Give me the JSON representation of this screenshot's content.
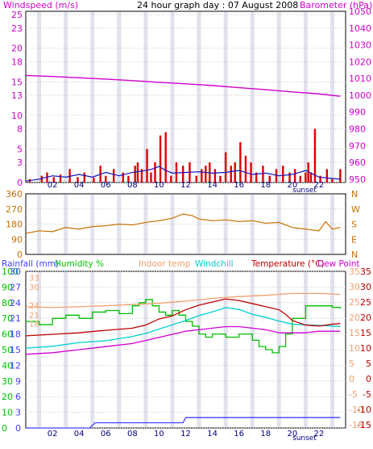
{
  "chart_data": [
    {
      "type": "bar+line",
      "title": "24 hour graph day : 07 August 2008",
      "left_axis_label": "Windspeed (m/s)",
      "right_axis_label": "Barometer (hPa)",
      "left_ticks": [
        "25",
        "23",
        "20",
        "18",
        "15",
        "13",
        "10",
        "8",
        "5",
        "3",
        "0"
      ],
      "left_range": [
        0,
        25.5
      ],
      "right_ticks": [
        "1050",
        "1040",
        "1030",
        "1020",
        "1010",
        "1000",
        "990",
        "980",
        "970",
        "960",
        "950"
      ],
      "right_range": [
        948,
        1050
      ],
      "x_ticks": [
        "02",
        "04",
        "06",
        "08",
        "10",
        "12",
        "14",
        "16",
        "18",
        "20",
        "22"
      ],
      "x_range_hours": [
        0,
        24
      ],
      "sunset_label": "sunset",
      "gridlines": true,
      "series": [
        {
          "kind": "bars",
          "color": "#e00000",
          "x": [
            0.3,
            1.2,
            1.6,
            2.1,
            2.6,
            3.3,
            3.9,
            4.4,
            5.1,
            5.6,
            6.0,
            6.6,
            7.3,
            7.7,
            8.2,
            8.4,
            8.7,
            9.1,
            9.4,
            9.7,
            10.1,
            10.5,
            10.9,
            11.3,
            11.8,
            12.3,
            12.8,
            13.2,
            13.5,
            13.8,
            14.2,
            14.6,
            15.0,
            15.4,
            15.7,
            16.1,
            16.5,
            16.9,
            17.3,
            17.8,
            18.3,
            18.8,
            19.3,
            19.8,
            20.2,
            20.6,
            21.0,
            21.2,
            21.4,
            21.7,
            22.1,
            22.6,
            23.0,
            23.6
          ],
          "values": [
            0.5,
            1.0,
            1.5,
            0.8,
            1.2,
            2.0,
            0.8,
            1.5,
            0.7,
            2.5,
            1.0,
            2.0,
            1.5,
            1.0,
            2.5,
            3.0,
            2.0,
            5.0,
            1.5,
            3.0,
            7.0,
            7.5,
            1.0,
            3.0,
            2.5,
            3.0,
            1.0,
            2.0,
            2.5,
            3.0,
            2.0,
            1.0,
            4.5,
            2.5,
            3.0,
            6.0,
            4.0,
            3.0,
            1.5,
            2.5,
            1.0,
            2.0,
            2.5,
            1.5,
            2.0,
            1.0,
            1.5,
            3.0,
            1.5,
            8.0,
            1.0,
            2.0,
            0.5,
            2.0
          ]
        },
        {
          "kind": "line",
          "name": "Average windspeed",
          "color": "#1010c0",
          "x": [
            0,
            1,
            2,
            3,
            4,
            5,
            6,
            7,
            8,
            9,
            9.5,
            10,
            10.5,
            11,
            12,
            13,
            14,
            15,
            16,
            17,
            18,
            19,
            20,
            20.7,
            21,
            22,
            23,
            23.6
          ],
          "values": [
            0.2,
            0.5,
            1.0,
            0.8,
            1.2,
            0.8,
            1.5,
            1.0,
            1.5,
            1.8,
            2.0,
            2.4,
            1.8,
            1.4,
            1.5,
            1.6,
            1.4,
            1.5,
            1.8,
            1.2,
            1.4,
            1.0,
            1.2,
            1.6,
            1.8,
            0.8,
            0.6,
            0.5
          ]
        },
        {
          "kind": "line",
          "name": "Barometer",
          "color": "#d000d0",
          "axis": "right",
          "x": [
            0,
            2,
            4,
            6,
            8,
            10,
            12,
            14,
            16,
            18,
            20,
            22,
            23.6
          ],
          "values": [
            1011.8,
            1011.2,
            1010.4,
            1009.6,
            1008.7,
            1007.7,
            1006.8,
            1005.8,
            1004.5,
            1003.3,
            1002.0,
            1000.8,
            999.4
          ]
        }
      ]
    },
    {
      "type": "line",
      "right_letters": [
        "N",
        "W",
        "S",
        "E",
        "N"
      ],
      "left_ticks": [
        "360",
        "270",
        "180",
        "90",
        "0"
      ],
      "left_range": [
        0,
        360
      ],
      "gridlines": true,
      "series": [
        {
          "name": "Wind direction",
          "color": "#c87000",
          "x": [
            0,
            1,
            2,
            3,
            4,
            5,
            6,
            7,
            8,
            9,
            10,
            11,
            11.8,
            12.5,
            13,
            14,
            15,
            16,
            17,
            18,
            19,
            20,
            21,
            22,
            22.5,
            23,
            23.6
          ],
          "values": [
            125,
            140,
            135,
            160,
            150,
            165,
            170,
            180,
            175,
            190,
            200,
            215,
            240,
            230,
            210,
            200,
            205,
            195,
            200,
            185,
            190,
            160,
            150,
            140,
            195,
            150,
            160
          ]
        }
      ]
    },
    {
      "type": "line",
      "legend": [
        {
          "label": "Rainfall (mm)",
          "color": "#4040ff"
        },
        {
          "label": "Humidity %",
          "color": "#00c000"
        },
        {
          "label": "Indoor temp",
          "color": "#f0a070"
        },
        {
          "label": "Windchill",
          "color": "#00d0d0"
        },
        {
          "label": "Temperature (°C)",
          "color": "#c00000"
        },
        {
          "label": "Dew Point",
          "color": "#d000d0"
        }
      ],
      "rain_ticks": [
        "30",
        "27",
        "24",
        "21",
        "18",
        "15",
        "12",
        "9",
        "6",
        "3",
        "0"
      ],
      "humidity_ticks": [
        "100",
        "90",
        "80",
        "70",
        "60",
        "50",
        "40",
        "30",
        "20",
        "10",
        "0"
      ],
      "temp_ticks_right": [
        "35",
        "30",
        "25",
        "20",
        "15",
        "10",
        "5",
        "0",
        "-5",
        "-10",
        "-15"
      ],
      "temp_ticks_left_inner": [
        "33",
        "30",
        "24",
        "21",
        "18"
      ],
      "x_ticks": [
        "02",
        "04",
        "06",
        "08",
        "10",
        "12",
        "14",
        "16",
        "18",
        "20",
        "22"
      ],
      "sunset_label": "sunset",
      "temp_range": [
        -16,
        35
      ],
      "gridlines": true,
      "series": [
        {
          "name": "Humidity",
          "color": "#00c000",
          "axis": "humidity",
          "x": [
            0,
            1,
            2,
            3,
            4,
            5,
            6,
            7,
            8,
            8.5,
            9,
            9.5,
            10,
            10.5,
            11,
            11.5,
            12,
            12.5,
            13,
            13.5,
            14,
            15,
            16,
            17,
            17.5,
            18,
            18.5,
            19,
            19.5,
            20,
            21,
            22,
            23,
            23.6
          ],
          "values": [
            68,
            66,
            70,
            72,
            70,
            74,
            75,
            73,
            78,
            80,
            82,
            78,
            74,
            72,
            75,
            72,
            68,
            65,
            60,
            58,
            60,
            58,
            60,
            56,
            52,
            50,
            48,
            52,
            60,
            70,
            78,
            78,
            77,
            76
          ]
        },
        {
          "name": "Indoor temp",
          "color": "#f0a070",
          "axis": "temp",
          "x": [
            0,
            2,
            4,
            6,
            8,
            10,
            12,
            14,
            16,
            18,
            20,
            22,
            23.6
          ],
          "values": [
            23.5,
            23.2,
            23.5,
            23.8,
            24.2,
            24.6,
            25.3,
            26.2,
            26.8,
            27.2,
            27.8,
            27.8,
            27.5
          ]
        },
        {
          "name": "Windchill",
          "color": "#00d0d0",
          "axis": "temp",
          "x": [
            0,
            2,
            4,
            6,
            8,
            9,
            10,
            11,
            12,
            13,
            14,
            15,
            16,
            17,
            18,
            19,
            20,
            21,
            22,
            23,
            23.6
          ],
          "values": [
            10.0,
            10.6,
            11.8,
            12.4,
            13.8,
            14.8,
            16.2,
            17.6,
            19.0,
            20.6,
            21.8,
            23.2,
            22.6,
            21.0,
            20.0,
            18.8,
            17.8,
            17.6,
            17.4,
            17.2,
            17.0
          ]
        },
        {
          "name": "Temperature",
          "color": "#c00000",
          "axis": "temp",
          "x": [
            0,
            2,
            4,
            6,
            8,
            9,
            10,
            11,
            12,
            13,
            14,
            15,
            16,
            17,
            18,
            19,
            19.5,
            20,
            21,
            22,
            23,
            23.6
          ],
          "values": [
            14.0,
            14.5,
            15.0,
            15.8,
            16.5,
            17.5,
            19.5,
            20.5,
            22.5,
            24.0,
            25.0,
            26.0,
            25.5,
            24.5,
            23.5,
            22.5,
            21.0,
            19.0,
            17.5,
            17.2,
            17.8,
            18.0
          ]
        },
        {
          "name": "Dew Point",
          "color": "#d000d0",
          "axis": "temp",
          "x": [
            0,
            2,
            4,
            6,
            8,
            9,
            10,
            11,
            12,
            13,
            14,
            15,
            16,
            17,
            18,
            19,
            20,
            21,
            22,
            23,
            23.6
          ],
          "values": [
            8.0,
            8.5,
            9.5,
            10.5,
            11.5,
            12.5,
            13.5,
            14.5,
            15.5,
            16.0,
            16.5,
            17.0,
            17.0,
            16.5,
            16.0,
            15.0,
            15.0,
            15.0,
            15.5,
            15.5,
            15.5
          ]
        },
        {
          "name": "Rainfall",
          "color": "#4040ff",
          "axis": "rain",
          "x": [
            0,
            4.8,
            5.2,
            11.8,
            12.0,
            23.6
          ],
          "values": [
            0.0,
            0.0,
            1.0,
            1.0,
            2.0,
            2.0
          ]
        }
      ]
    }
  ]
}
